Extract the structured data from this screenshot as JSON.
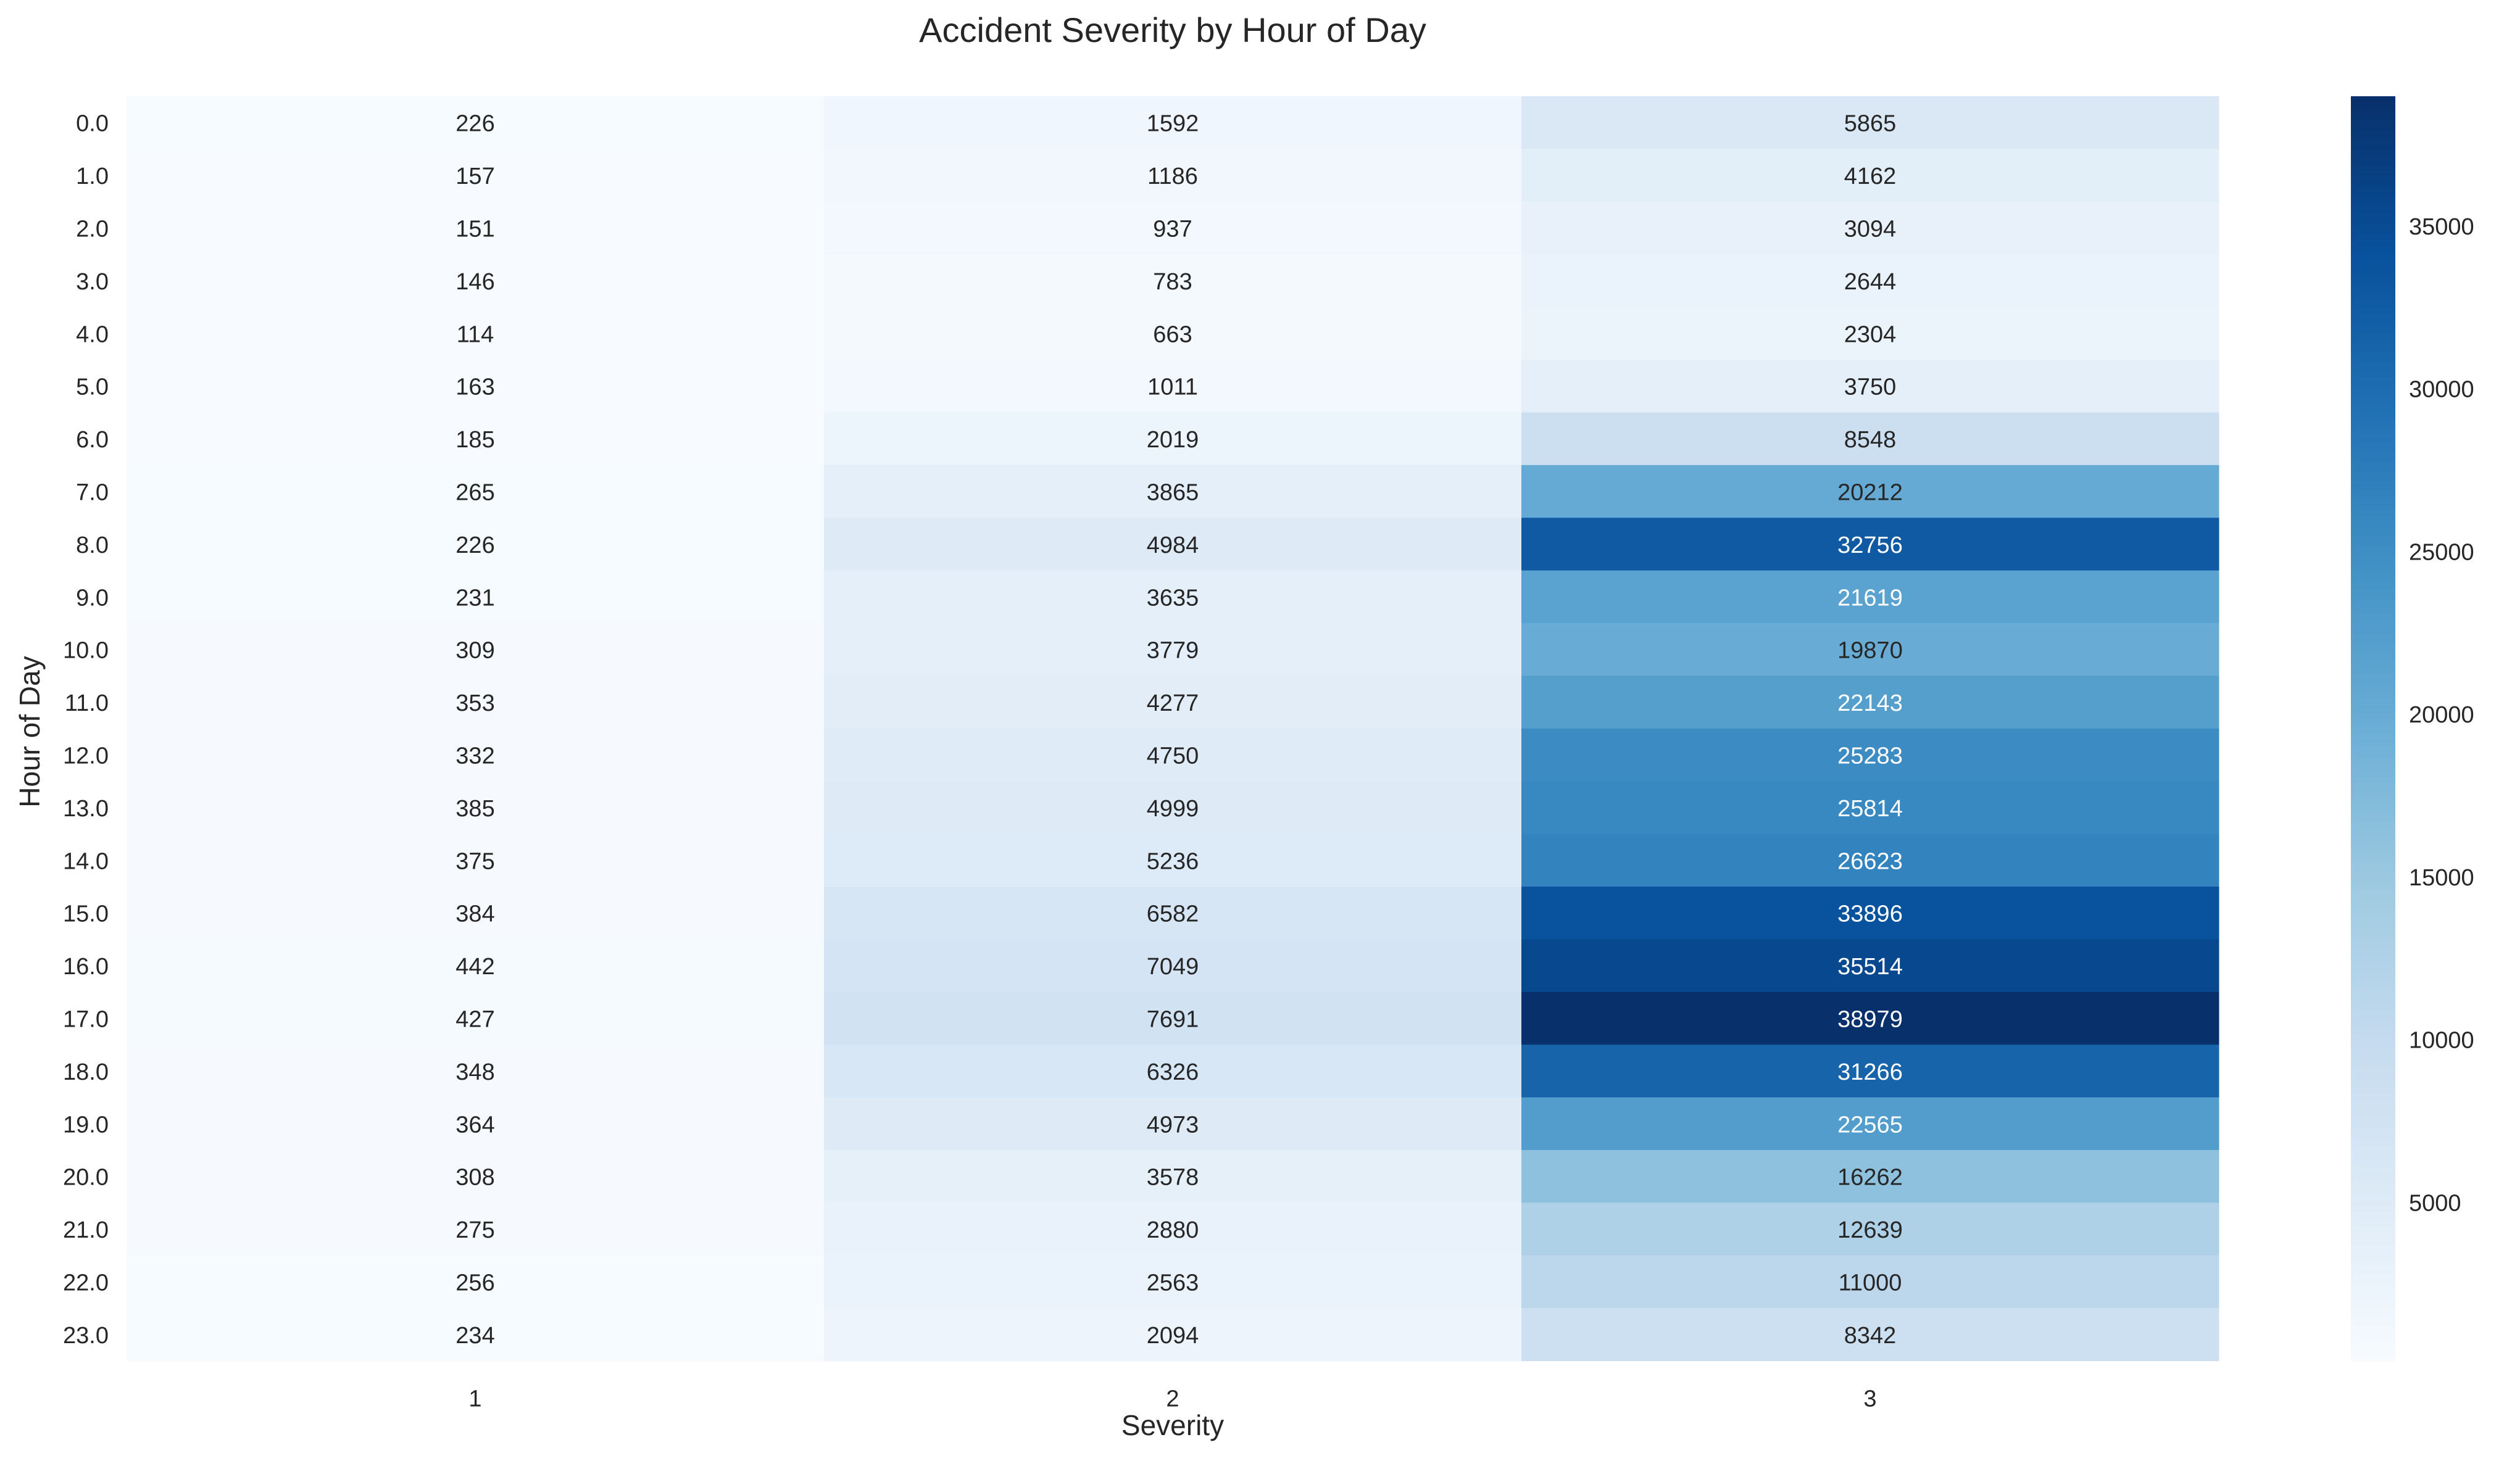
{
  "chart_data": {
    "type": "heatmap",
    "title": "Accident Severity by Hour of Day",
    "xlabel": "Severity",
    "ylabel": "Hour of Day",
    "x_categories": [
      "1",
      "2",
      "3"
    ],
    "y_categories": [
      "0.0",
      "1.0",
      "2.0",
      "3.0",
      "4.0",
      "5.0",
      "6.0",
      "7.0",
      "8.0",
      "9.0",
      "10.0",
      "11.0",
      "12.0",
      "13.0",
      "14.0",
      "15.0",
      "16.0",
      "17.0",
      "18.0",
      "19.0",
      "20.0",
      "21.0",
      "22.0",
      "23.0"
    ],
    "values": [
      [
        226,
        1592,
        5865
      ],
      [
        157,
        1186,
        4162
      ],
      [
        151,
        937,
        3094
      ],
      [
        146,
        783,
        2644
      ],
      [
        114,
        663,
        2304
      ],
      [
        163,
        1011,
        3750
      ],
      [
        185,
        2019,
        8548
      ],
      [
        265,
        3865,
        20212
      ],
      [
        226,
        4984,
        32756
      ],
      [
        231,
        3635,
        21619
      ],
      [
        309,
        3779,
        19870
      ],
      [
        353,
        4277,
        22143
      ],
      [
        332,
        4750,
        25283
      ],
      [
        385,
        4999,
        25814
      ],
      [
        375,
        5236,
        26623
      ],
      [
        384,
        6582,
        33896
      ],
      [
        442,
        7049,
        35514
      ],
      [
        427,
        7691,
        38979
      ],
      [
        348,
        6326,
        31266
      ],
      [
        364,
        4973,
        22565
      ],
      [
        308,
        3578,
        16262
      ],
      [
        275,
        2880,
        12639
      ],
      [
        256,
        2563,
        11000
      ],
      [
        234,
        2094,
        8342
      ]
    ],
    "colormap": "Blues",
    "color_range": [
      114,
      38979
    ],
    "colorbar_ticks": [
      5000,
      10000,
      15000,
      20000,
      25000,
      30000,
      35000
    ],
    "grid": false,
    "legend": "colorbar-right"
  }
}
